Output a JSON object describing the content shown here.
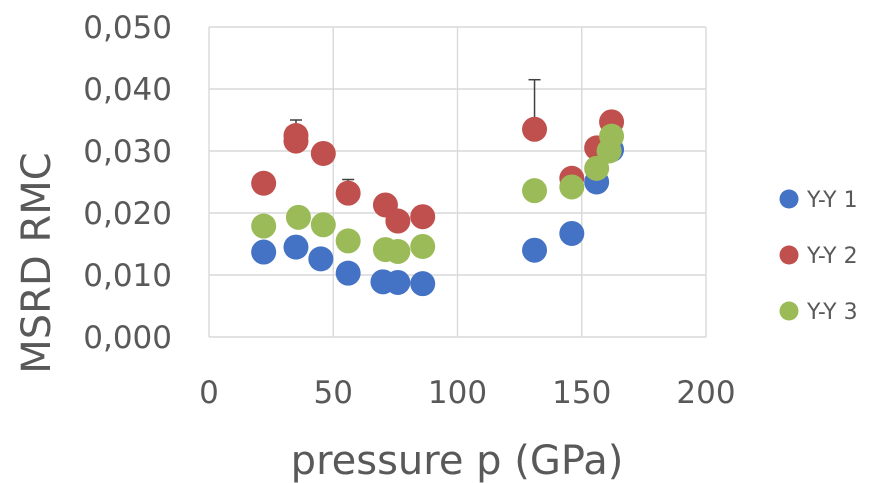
{
  "chart_data": {
    "type": "scatter",
    "xlabel": "pressure p (GPa)",
    "ylabel": "MSRD RMC",
    "xlim": [
      0,
      200
    ],
    "ylim": [
      0.0,
      0.05
    ],
    "x_ticks": [
      "0",
      "50",
      "100",
      "150",
      "200"
    ],
    "y_ticks": [
      "0,000",
      "0,010",
      "0,020",
      "0,030",
      "0,040",
      "0,050"
    ],
    "grid": "major gridlines on both axes",
    "legend_position": "right",
    "series": [
      {
        "name": "Y-Y 1",
        "color": "#4472c4",
        "points": [
          {
            "x": 22,
            "y": 0.0137
          },
          {
            "x": 35,
            "y": 0.0145
          },
          {
            "x": 45,
            "y": 0.0126
          },
          {
            "x": 56,
            "y": 0.0103
          },
          {
            "x": 70,
            "y": 0.0089
          },
          {
            "x": 76,
            "y": 0.0088
          },
          {
            "x": 86,
            "y": 0.0086
          },
          {
            "x": 131,
            "y": 0.014
          },
          {
            "x": 146,
            "y": 0.0167
          },
          {
            "x": 156,
            "y": 0.025
          },
          {
            "x": 162,
            "y": 0.0302
          }
        ]
      },
      {
        "name": "Y-Y 2",
        "color": "#c0504d",
        "points": [
          {
            "x": 22,
            "y": 0.0248
          },
          {
            "x": 35,
            "y": 0.0325,
            "err": 0.0025
          },
          {
            "x": 35,
            "y": 0.0316
          },
          {
            "x": 46,
            "y": 0.0296
          },
          {
            "x": 56,
            "y": 0.0232,
            "err": 0.0022
          },
          {
            "x": 71,
            "y": 0.0213
          },
          {
            "x": 76,
            "y": 0.0187
          },
          {
            "x": 86,
            "y": 0.0194
          },
          {
            "x": 131,
            "y": 0.0335,
            "err": 0.008
          },
          {
            "x": 146,
            "y": 0.0256
          },
          {
            "x": 156,
            "y": 0.0305
          },
          {
            "x": 162,
            "y": 0.0347
          }
        ]
      },
      {
        "name": "Y-Y 3",
        "color": "#9bbb59",
        "points": [
          {
            "x": 22,
            "y": 0.0179
          },
          {
            "x": 36,
            "y": 0.0193
          },
          {
            "x": 46,
            "y": 0.0181
          },
          {
            "x": 56,
            "y": 0.0155
          },
          {
            "x": 71,
            "y": 0.0141
          },
          {
            "x": 76,
            "y": 0.0138
          },
          {
            "x": 86,
            "y": 0.0146
          },
          {
            "x": 131,
            "y": 0.0236
          },
          {
            "x": 146,
            "y": 0.0242
          },
          {
            "x": 156,
            "y": 0.0272
          },
          {
            "x": 161,
            "y": 0.03
          },
          {
            "x": 162,
            "y": 0.0324
          }
        ]
      }
    ]
  }
}
